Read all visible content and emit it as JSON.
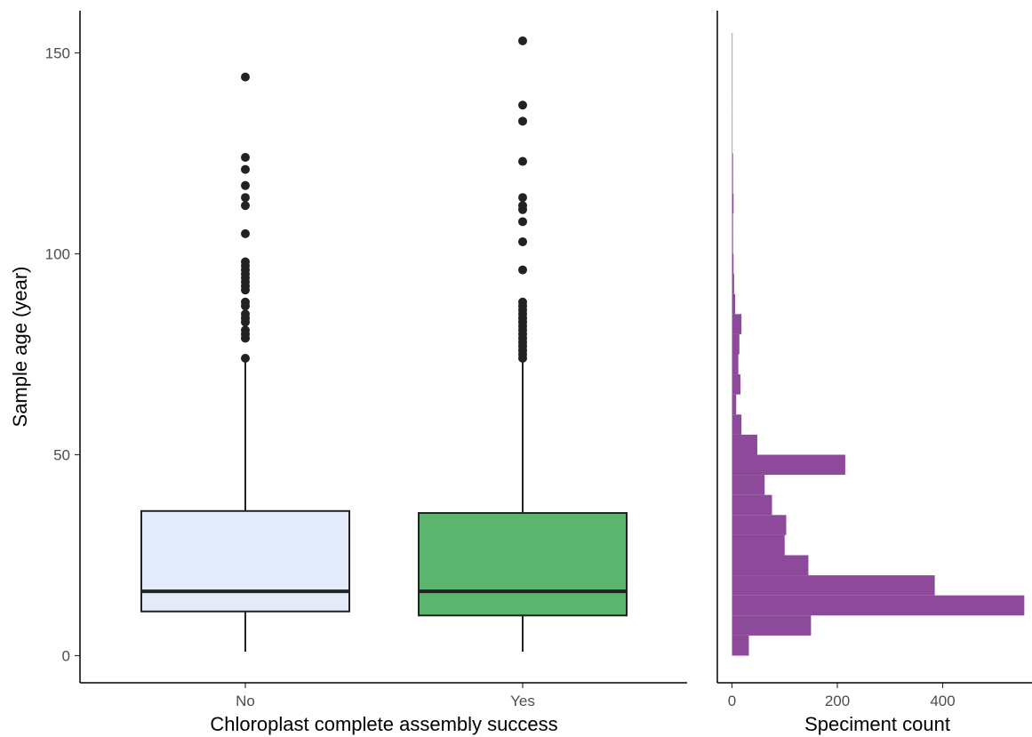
{
  "chart_data": [
    {
      "type": "box",
      "xlabel": "Chloroplast complete assembly success",
      "ylabel": "Sample age (year)",
      "ylim": [
        -5,
        160
      ],
      "yticks": [
        0,
        50,
        100,
        150
      ],
      "grid": false,
      "categories": [
        "No",
        "Yes"
      ],
      "boxes": [
        {
          "name": "No",
          "fill": "#e3eafa",
          "whisker_low": 1,
          "q1": 11,
          "median": 16,
          "q3": 36,
          "whisker_high": 73,
          "outliers": [
            74,
            79,
            80,
            81,
            83,
            84,
            85,
            87,
            88,
            91,
            92,
            93,
            94,
            95,
            96,
            97,
            98,
            105,
            112,
            114,
            117,
            121,
            124,
            144
          ]
        },
        {
          "name": "Yes",
          "fill": "#5cb56e",
          "whisker_low": 1,
          "q1": 10,
          "median": 16,
          "q3": 35.5,
          "whisker_high": 73,
          "outliers": [
            74,
            75,
            76,
            77,
            78,
            79,
            80,
            81,
            82,
            83,
            84,
            85,
            86,
            87,
            88,
            96,
            103,
            108,
            111,
            112,
            114,
            123,
            133,
            137,
            153
          ]
        }
      ]
    },
    {
      "type": "histogram",
      "orientation": "horizontal",
      "xlabel": "Speciment count",
      "xlim": [
        0,
        560
      ],
      "xticks": [
        0,
        200,
        400
      ],
      "color": "#8e4a9a",
      "bin_width": 5,
      "bins": [
        {
          "y_start": 0,
          "count": 32
        },
        {
          "y_start": 5,
          "count": 150
        },
        {
          "y_start": 10,
          "count": 555
        },
        {
          "y_start": 15,
          "count": 385
        },
        {
          "y_start": 20,
          "count": 145
        },
        {
          "y_start": 25,
          "count": 100
        },
        {
          "y_start": 30,
          "count": 103
        },
        {
          "y_start": 35,
          "count": 76
        },
        {
          "y_start": 40,
          "count": 62
        },
        {
          "y_start": 45,
          "count": 215
        },
        {
          "y_start": 50,
          "count": 48
        },
        {
          "y_start": 55,
          "count": 18
        },
        {
          "y_start": 60,
          "count": 8
        },
        {
          "y_start": 65,
          "count": 16
        },
        {
          "y_start": 70,
          "count": 12
        },
        {
          "y_start": 75,
          "count": 14
        },
        {
          "y_start": 80,
          "count": 18
        },
        {
          "y_start": 85,
          "count": 6
        },
        {
          "y_start": 90,
          "count": 4
        },
        {
          "y_start": 95,
          "count": 3
        },
        {
          "y_start": 100,
          "count": 2
        },
        {
          "y_start": 105,
          "count": 2
        },
        {
          "y_start": 110,
          "count": 3
        },
        {
          "y_start": 115,
          "count": 2
        },
        {
          "y_start": 120,
          "count": 2
        },
        {
          "y_start": 125,
          "count": 1
        },
        {
          "y_start": 130,
          "count": 1
        },
        {
          "y_start": 135,
          "count": 1
        },
        {
          "y_start": 140,
          "count": 1
        },
        {
          "y_start": 145,
          "count": 1
        },
        {
          "y_start": 150,
          "count": 1
        }
      ]
    }
  ]
}
